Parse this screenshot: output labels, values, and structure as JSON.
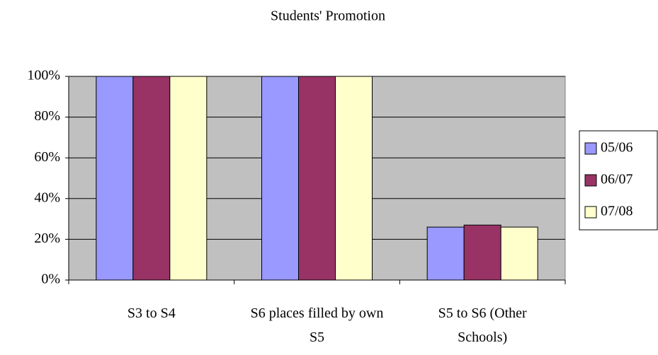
{
  "chart_data": {
    "type": "bar",
    "title": "Students' Promotion",
    "categories": [
      "S3 to S4",
      "S6 places filled by own S5",
      "S5 to S6 (Other Schools)"
    ],
    "series": [
      {
        "name": "05/06",
        "color": "#9999ff",
        "values": [
          100,
          100,
          26
        ]
      },
      {
        "name": "06/07",
        "color": "#993366",
        "values": [
          100,
          100,
          27
        ]
      },
      {
        "name": "07/08",
        "color": "#ffffcc",
        "values": [
          100,
          100,
          26
        ]
      }
    ],
    "ylim": [
      0,
      100
    ],
    "yticks": [
      {
        "value": 0,
        "label": "0%"
      },
      {
        "value": 20,
        "label": "20%"
      },
      {
        "value": 40,
        "label": "40%"
      },
      {
        "value": 60,
        "label": "60%"
      },
      {
        "value": 80,
        "label": "80%"
      },
      {
        "value": 100,
        "label": "100%"
      }
    ],
    "grid": true,
    "legend": "right",
    "background": "#c0c0c0"
  }
}
